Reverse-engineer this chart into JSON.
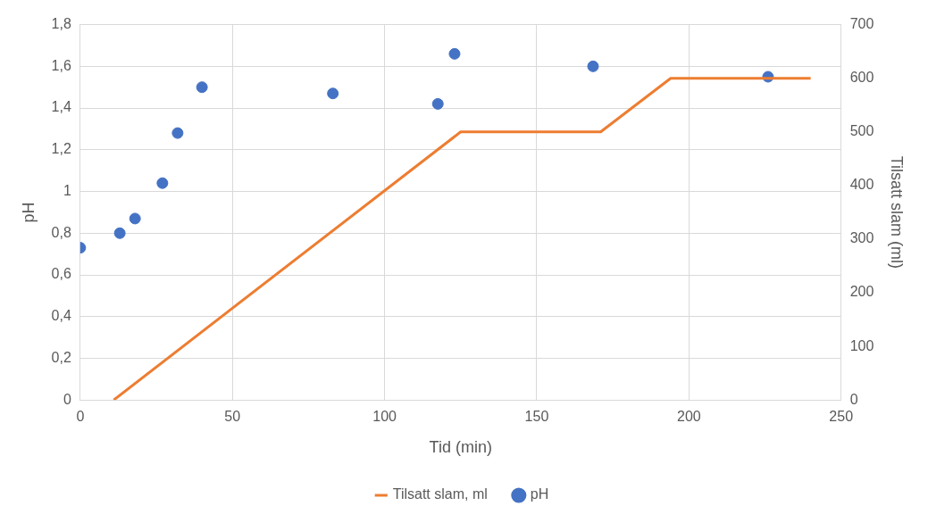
{
  "chart_data": {
    "type": "scatter",
    "xlabel": "Tid (min)",
    "ylabel": "pH",
    "y2label": "Tilsatt slam (ml)",
    "xlim": [
      0,
      250
    ],
    "xticks": [
      0,
      50,
      100,
      150,
      200,
      250
    ],
    "ylim": [
      0,
      1.8
    ],
    "yticks": [
      0,
      {
        "value": 0.2,
        "label": "0,2"
      },
      {
        "value": 0.4,
        "label": "0,4"
      },
      {
        "value": 0.6,
        "label": "0,6"
      },
      {
        "value": 0.8,
        "label": "0,8"
      },
      1,
      {
        "value": 1.2,
        "label": "1,2"
      },
      {
        "value": 1.4,
        "label": "1,4"
      },
      {
        "value": 1.6,
        "label": "1,6"
      },
      {
        "value": 1.8,
        "label": "1,8"
      }
    ],
    "y2lim": [
      0,
      700
    ],
    "y2ticks": [
      0,
      100,
      200,
      300,
      400,
      500,
      600,
      700
    ],
    "grid": true,
    "legend": "bottom",
    "series": [
      {
        "name": "Tilsatt slam, ml",
        "type": "line",
        "axis": "y2",
        "color": "#ed7d31",
        "marker": "none",
        "x": [
          11,
          125,
          171,
          194,
          240
        ],
        "values": [
          0,
          500,
          500,
          600,
          600
        ]
      },
      {
        "name": "pH",
        "color": "#4472c4",
        "marker": "circle",
        "x": [
          0,
          13,
          18,
          27,
          32,
          40,
          83,
          117.5,
          123,
          168.5,
          226
        ],
        "values": [
          0.73,
          0.8,
          0.87,
          1.04,
          1.28,
          1.5,
          1.47,
          1.42,
          1.66,
          1.6,
          1.55
        ]
      }
    ]
  }
}
